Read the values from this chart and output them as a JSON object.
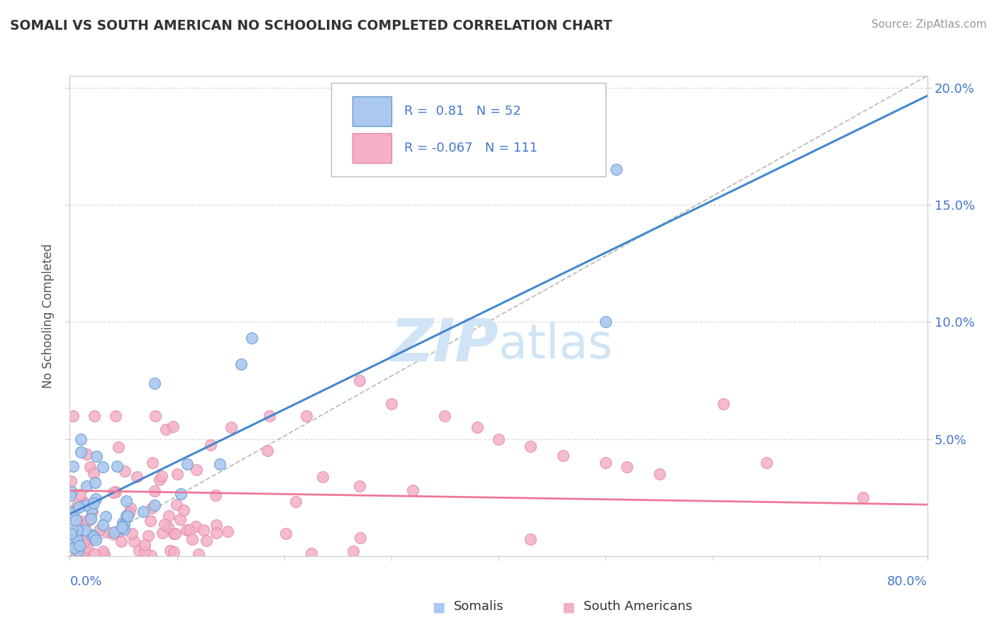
{
  "title": "SOMALI VS SOUTH AMERICAN NO SCHOOLING COMPLETED CORRELATION CHART",
  "source": "Source: ZipAtlas.com",
  "ylabel": "No Schooling Completed",
  "somali_R": 0.81,
  "somali_N": 52,
  "southam_R": -0.067,
  "southam_N": 111,
  "somali_fill": "#aac8f0",
  "southam_fill": "#f5b0c5",
  "somali_edge": "#6699cc",
  "southam_edge": "#dd88aa",
  "somali_line": "#4488cc",
  "southam_line": "#ee7799",
  "legend_text_color": "#4477cc",
  "title_color": "#333333",
  "source_color": "#999999",
  "ylabel_color": "#555555",
  "watermark_color": "#d0e4f5",
  "grid_color": "#dddddd",
  "background_color": "#ffffff",
  "xmin": 0.0,
  "xmax": 0.8,
  "ymin": 0.0,
  "ymax": 0.205,
  "somali_line_x0": 0.0,
  "somali_line_y0": 0.018,
  "somali_line_x1": 0.65,
  "somali_line_y1": 0.163,
  "southam_line_x0": 0.0,
  "southam_line_y0": 0.028,
  "southam_line_x1": 0.8,
  "southam_line_y1": 0.022
}
